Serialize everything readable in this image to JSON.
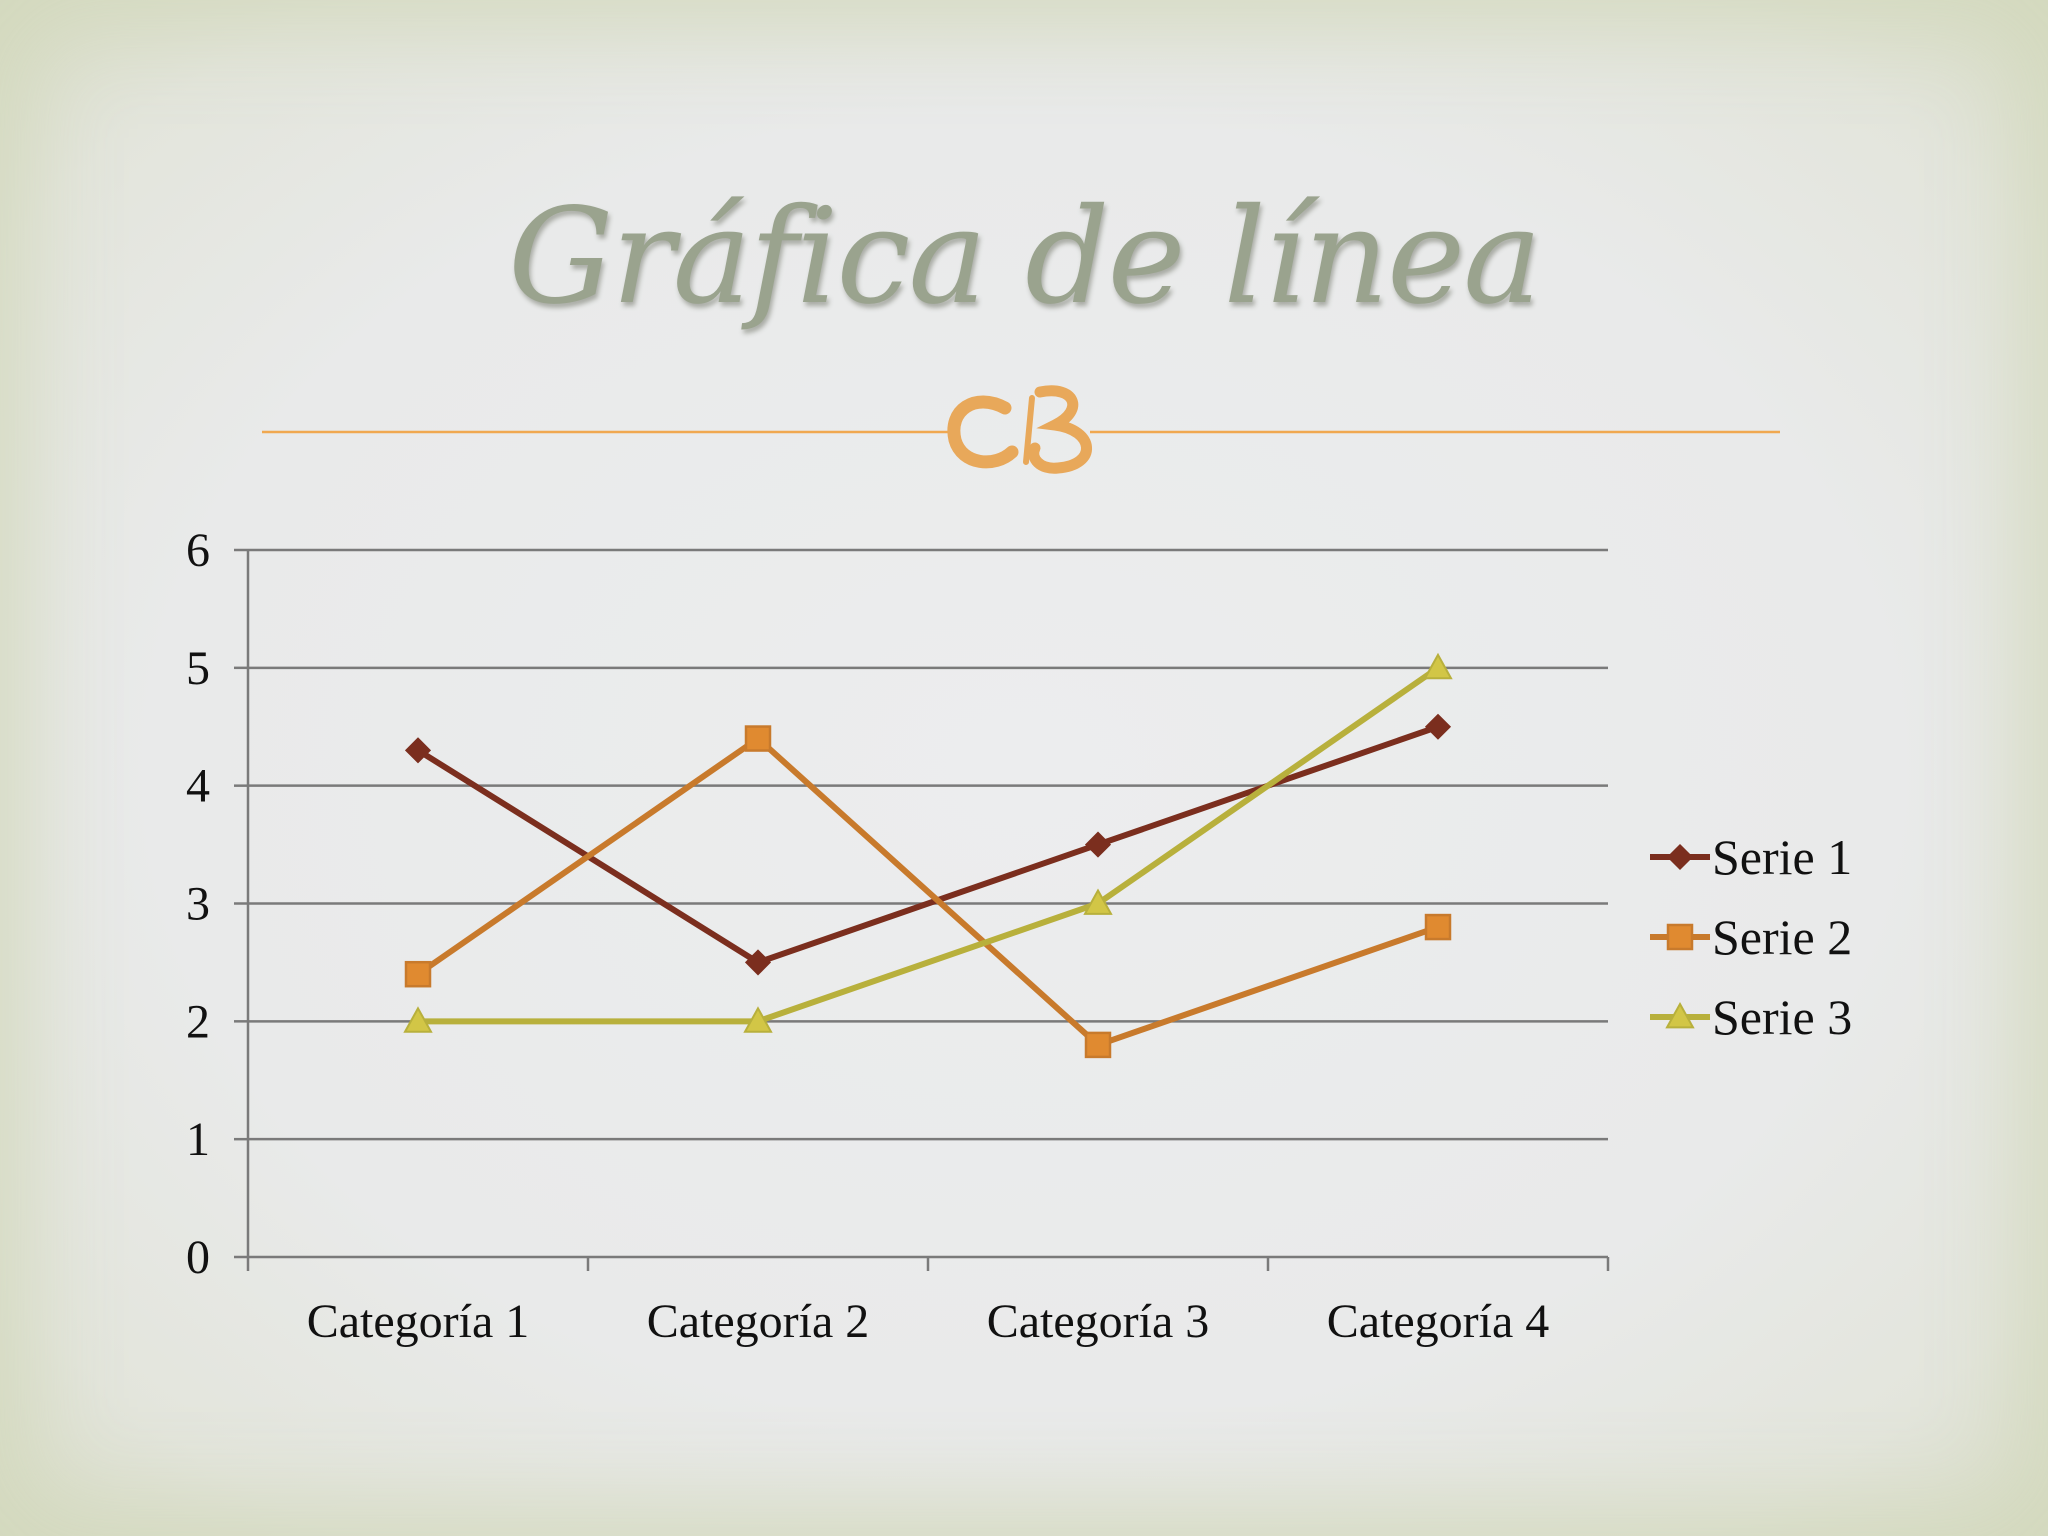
{
  "slide": {
    "title": "Gráfica de línea"
  },
  "colors": {
    "title": "#9aa38e",
    "divider": "#f0a850",
    "ornament": "#e8a85a",
    "gridline": "#7a7a7a",
    "series1": "#7b2e1e",
    "series2": "#c87a2c",
    "series3": "#b8b03c"
  },
  "chart_data": {
    "type": "line",
    "categories": [
      "Categoría 1",
      "Categoría 2",
      "Categoría 3",
      "Categoría 4"
    ],
    "series": [
      {
        "name": "Serie 1",
        "values": [
          4.3,
          2.5,
          3.5,
          4.5
        ],
        "marker": "diamond"
      },
      {
        "name": "Serie 2",
        "values": [
          2.4,
          4.4,
          1.8,
          2.8
        ],
        "marker": "square"
      },
      {
        "name": "Serie 3",
        "values": [
          2,
          2,
          3,
          5
        ],
        "marker": "triangle"
      }
    ],
    "ylim": [
      0,
      6
    ],
    "yticks": [
      "0",
      "1",
      "2",
      "3",
      "4",
      "5",
      "6"
    ],
    "grid": true,
    "legend": "right"
  }
}
